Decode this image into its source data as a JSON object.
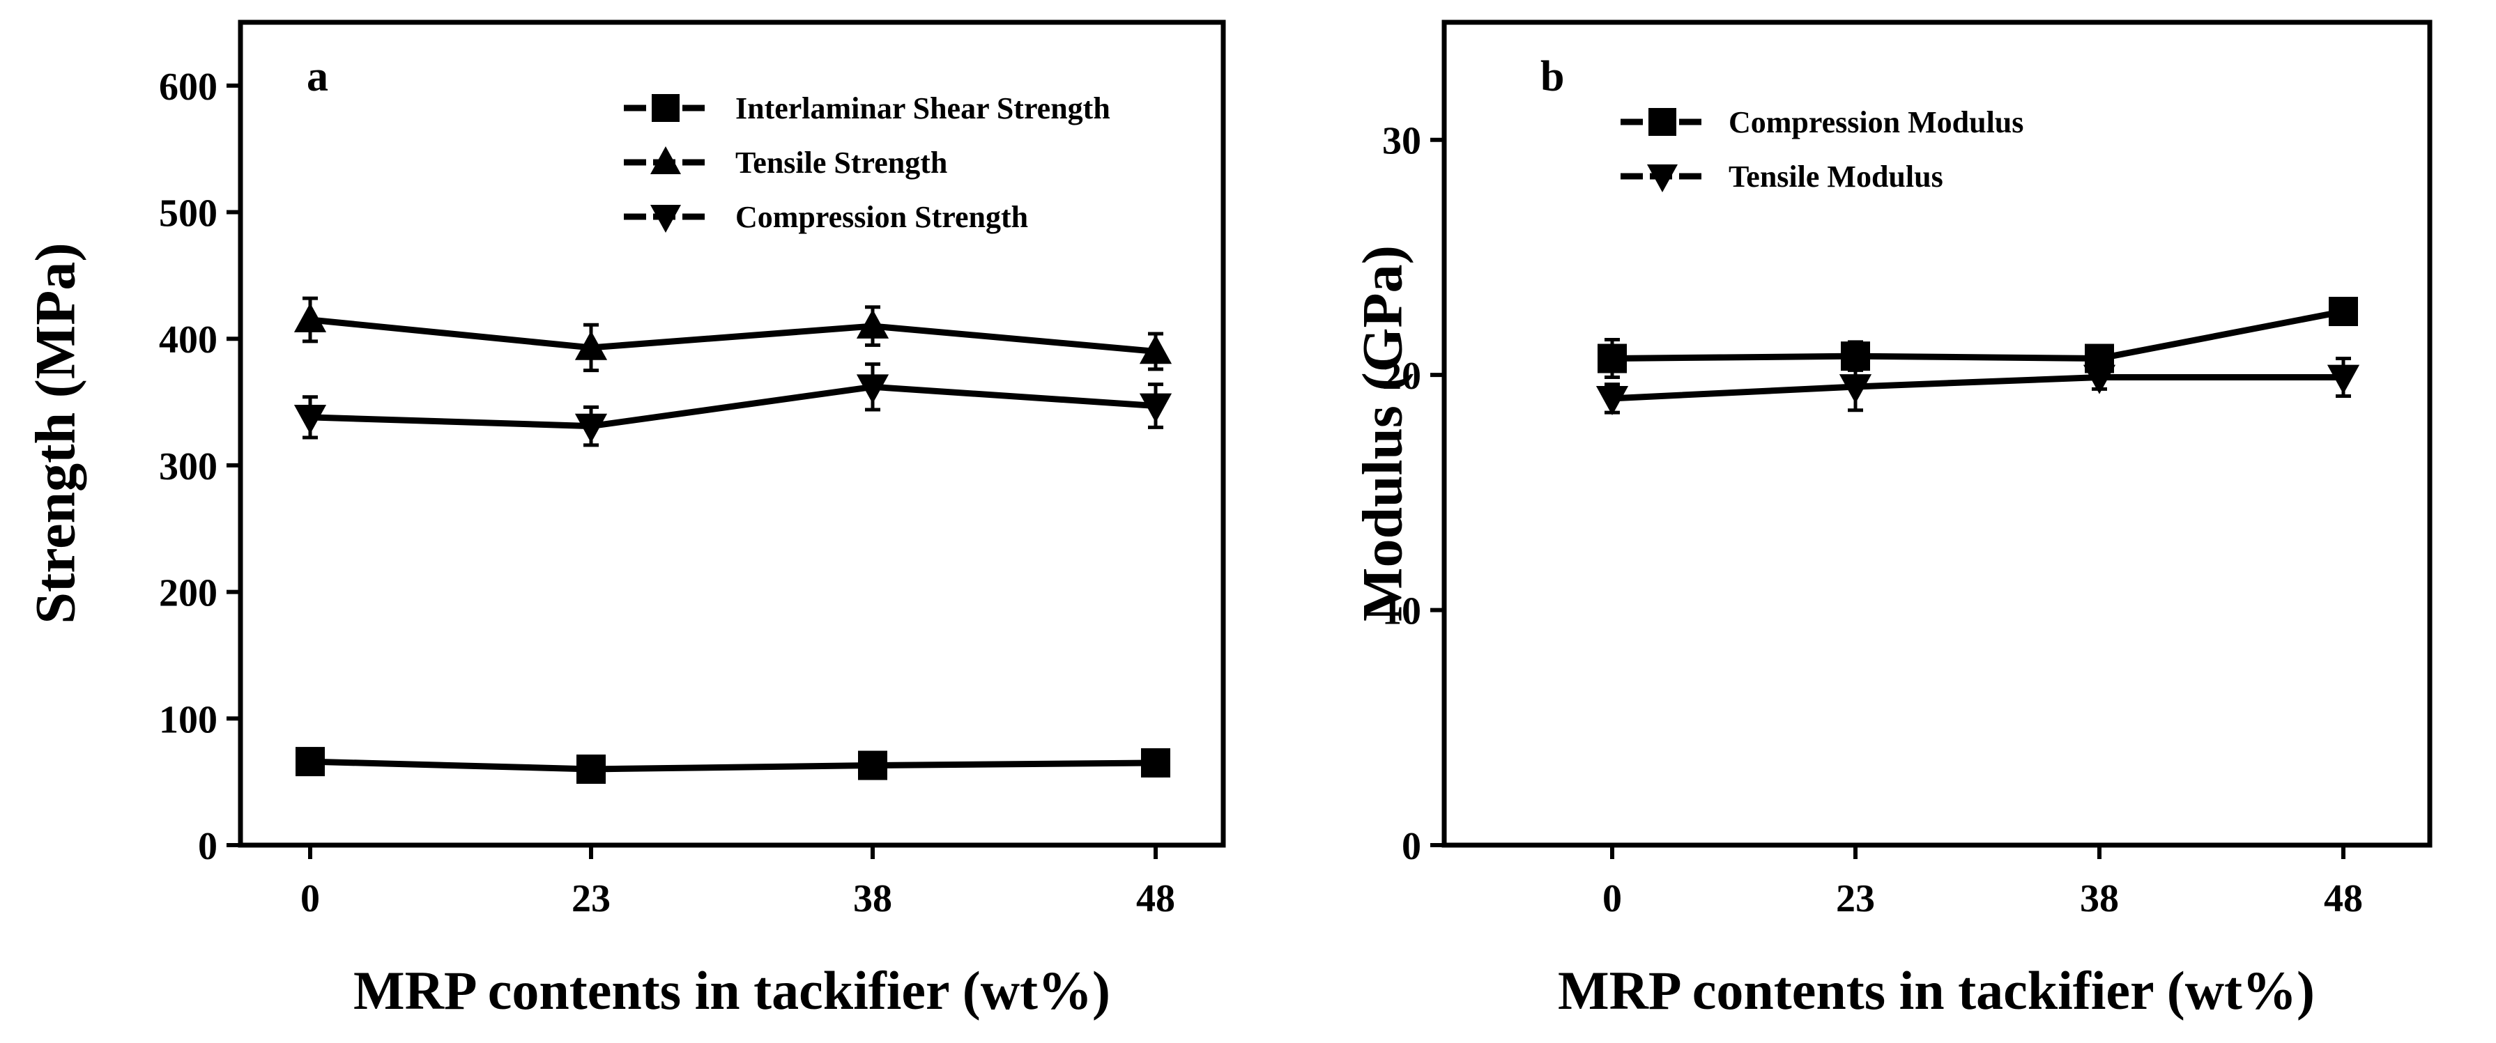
{
  "chart_data": [
    {
      "panel_label": "a",
      "type": "line",
      "title": "",
      "xlabel": "MRP contents in tackifier (wt%)",
      "ylabel": "Strength (MPa)",
      "categories": [
        "0",
        "23",
        "38",
        "48"
      ],
      "ylim": [
        0,
        650
      ],
      "yticks": [
        0,
        100,
        200,
        300,
        400,
        500,
        600
      ],
      "grid": false,
      "legend_position": "top-right",
      "series": [
        {
          "name": "Interlaminar  Shear Strength",
          "marker": "square",
          "values": [
            66,
            60,
            63,
            65
          ],
          "errors": [
            10,
            9,
            9,
            10
          ]
        },
        {
          "name": "Tensile Strength",
          "marker": "triangle-up",
          "values": [
            415,
            393,
            410,
            390
          ],
          "errors": [
            17,
            18,
            15,
            14
          ]
        },
        {
          "name": "Compression Strength",
          "marker": "triangle-down",
          "values": [
            338,
            331,
            362,
            347
          ],
          "errors": [
            16,
            15,
            18,
            17
          ]
        }
      ]
    },
    {
      "panel_label": "b",
      "type": "line",
      "title": "",
      "xlabel": "MRP contents in tackifier (wt%)",
      "ylabel": "Modulus (GPa)",
      "categories": [
        "0",
        "23",
        "38",
        "48"
      ],
      "ylim": [
        0,
        35
      ],
      "yticks": [
        0,
        10,
        20,
        30
      ],
      "grid": false,
      "legend_position": "top-left",
      "series": [
        {
          "name": "Compression Modulus",
          "marker": "square",
          "values": [
            20.7,
            20.8,
            20.7,
            22.7
          ],
          "errors": [
            0.8,
            0.6,
            0.4,
            0.4
          ]
        },
        {
          "name": "Tensile Modulus",
          "marker": "triangle-down",
          "values": [
            19.0,
            19.5,
            19.9,
            19.9
          ],
          "errors": [
            0.6,
            1.0,
            0.5,
            0.8
          ]
        }
      ]
    }
  ]
}
